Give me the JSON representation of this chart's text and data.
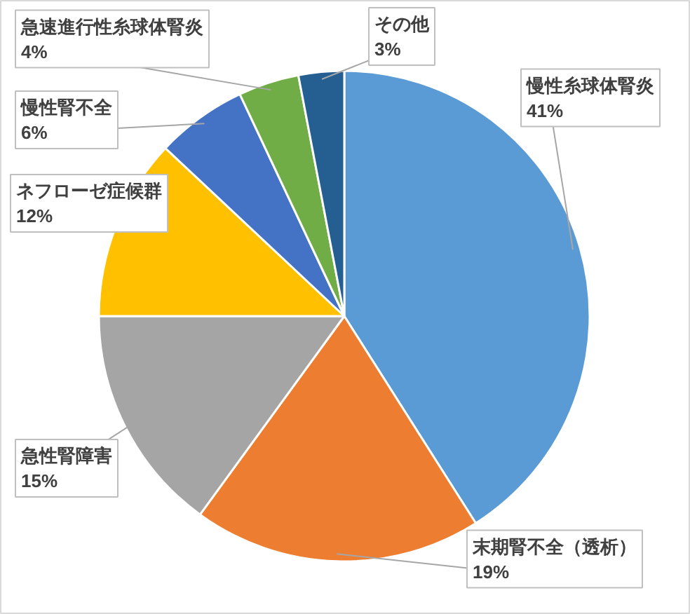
{
  "chart_data": {
    "type": "pie",
    "categories": [
      "慢性糸球体腎炎",
      "末期腎不全（透析）",
      "急性腎障害",
      "ネフローゼ症候群",
      "慢性腎不全",
      "急速進行性糸球体腎炎",
      "その他"
    ],
    "values": [
      41,
      19,
      15,
      12,
      6,
      4,
      3
    ],
    "value_labels": [
      "41%",
      "19%",
      "15%",
      "12%",
      "6%",
      "4%",
      "3%"
    ],
    "colors": [
      "#5b9bd5",
      "#ed7d31",
      "#a5a5a5",
      "#ffc000",
      "#4472c4",
      "#70ad47",
      "#255e91"
    ],
    "legend": false
  }
}
